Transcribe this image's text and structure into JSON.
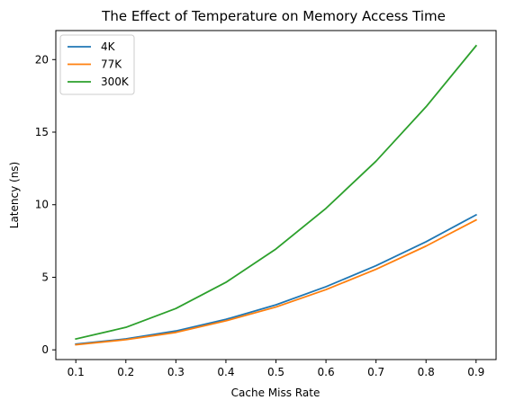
{
  "chart_data": {
    "type": "line",
    "title": "The Effect of Temperature on Memory Access Time",
    "xlabel": "Cache Miss Rate",
    "ylabel": "Latency (ns)",
    "x": [
      0.1,
      0.2,
      0.3,
      0.4,
      0.5,
      0.6,
      0.7,
      0.8,
      0.9
    ],
    "xlim": [
      0.06,
      0.94
    ],
    "ylim": [
      -0.67,
      22.0
    ],
    "xticks": [
      "0.1",
      "0.2",
      "0.3",
      "0.4",
      "0.5",
      "0.6",
      "0.7",
      "0.8",
      "0.9"
    ],
    "yticks": [
      0,
      5,
      10,
      15,
      20
    ],
    "grid": false,
    "legend_position": "top-left",
    "series": [
      {
        "name": "4K",
        "color": "#1f77b4",
        "values": [
          0.4,
          0.75,
          1.3,
          2.1,
          3.1,
          4.35,
          5.8,
          7.45,
          9.3
        ]
      },
      {
        "name": "77K",
        "color": "#ff7f0e",
        "values": [
          0.35,
          0.7,
          1.2,
          2.0,
          2.95,
          4.15,
          5.55,
          7.15,
          8.95
        ]
      },
      {
        "name": "300K",
        "color": "#2ca02c",
        "values": [
          0.75,
          1.55,
          2.85,
          4.65,
          6.95,
          9.75,
          13.0,
          16.75,
          20.95
        ]
      }
    ]
  }
}
